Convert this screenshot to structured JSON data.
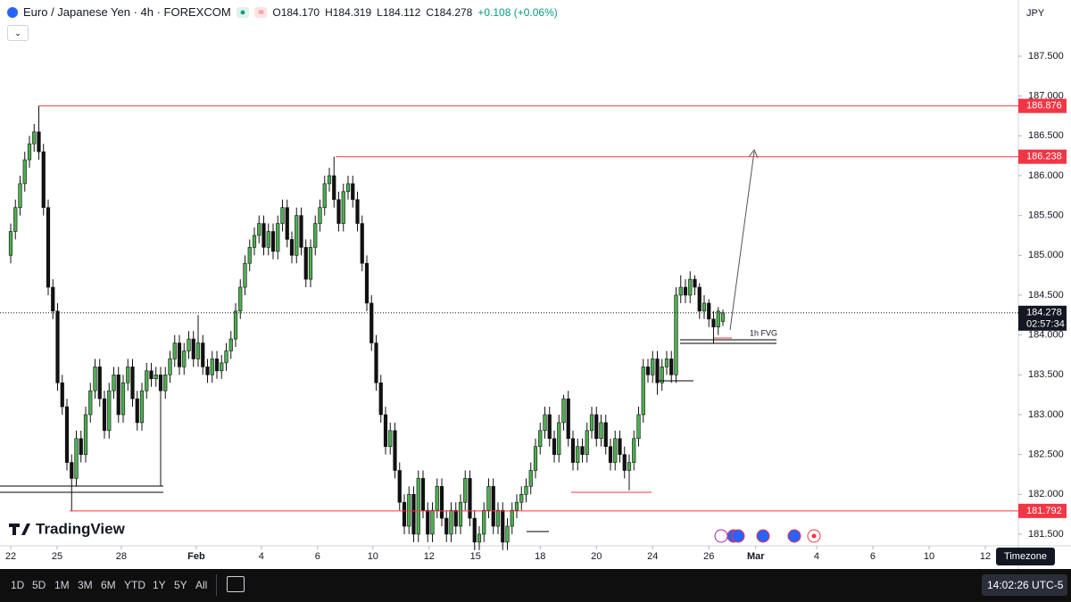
{
  "chart_data": {
    "type": "candlestick",
    "title": "Euro / Japanese Yen · 4h · FOREXCOM",
    "ohlc_labels": [
      "O184.170",
      "H184.319",
      "L184.112",
      "C184.278"
    ],
    "change": "+0.108 (+0.06%)",
    "currency": "JPY",
    "up_color": "#4caf50",
    "down_color": "#111111",
    "ylim": [
      181.354,
      188.205
    ],
    "xlim": [
      -2.286,
      214.86
    ],
    "yticks": [
      {
        "value": 181.5,
        "label": "181.500"
      },
      {
        "value": 182,
        "label": "182.000"
      },
      {
        "value": 182.5,
        "label": "182.500"
      },
      {
        "value": 183,
        "label": "183.000"
      },
      {
        "value": 183.5,
        "label": "183.500"
      },
      {
        "value": 184,
        "label": "184.000"
      },
      {
        "value": 184.5,
        "label": "184.500"
      },
      {
        "value": 185,
        "label": "185.000"
      },
      {
        "value": 185.5,
        "label": "185.500"
      },
      {
        "value": 186,
        "label": "186.000"
      },
      {
        "value": 186.5,
        "label": "186.500"
      },
      {
        "value": 187,
        "label": "187.000"
      },
      {
        "value": 187.5,
        "label": "187.500"
      }
    ],
    "xticks": [
      {
        "value": 0,
        "label": "22"
      },
      {
        "value": 9.9,
        "label": "25"
      },
      {
        "value": 23.6,
        "label": "28"
      },
      {
        "value": 39.6,
        "label": "Feb"
      },
      {
        "value": 53.5,
        "label": "4"
      },
      {
        "value": 65.5,
        "label": "6"
      },
      {
        "value": 77.3,
        "label": "10"
      },
      {
        "value": 89.3,
        "label": "12"
      },
      {
        "value": 99.2,
        "label": "15"
      },
      {
        "value": 113,
        "label": "18"
      },
      {
        "value": 125,
        "label": "20"
      },
      {
        "value": 137,
        "label": "24"
      },
      {
        "value": 149,
        "label": "26"
      },
      {
        "value": 159,
        "label": "Mar"
      },
      {
        "value": 172,
        "label": "4"
      },
      {
        "value": 184,
        "label": "6"
      },
      {
        "value": 196,
        "label": "10"
      },
      {
        "value": 208,
        "label": "12"
      }
    ],
    "levels": [
      186.876,
      186.238,
      181.792
    ],
    "level_color": "#f23645",
    "countdown": "02:57:34",
    "annotation": "1h FVG",
    "candles": [
      [
        185.0,
        185.4,
        184.9,
        185.3
      ],
      [
        185.3,
        185.7,
        185.2,
        185.6
      ],
      [
        185.6,
        186.0,
        185.5,
        185.9
      ],
      [
        185.9,
        186.3,
        185.8,
        186.2
      ],
      [
        186.2,
        186.5,
        186.1,
        186.4
      ],
      [
        186.4,
        186.65,
        186.3,
        186.55
      ],
      [
        186.55,
        186.876,
        186.2,
        186.3
      ],
      [
        186.3,
        186.4,
        185.5,
        185.6
      ],
      [
        185.6,
        185.7,
        184.5,
        184.6
      ],
      [
        184.6,
        184.7,
        184.2,
        184.3
      ],
      [
        184.3,
        184.4,
        183.3,
        183.4
      ],
      [
        183.4,
        183.5,
        183.0,
        183.1
      ],
      [
        183.1,
        183.2,
        182.3,
        182.4
      ],
      [
        182.4,
        182.5,
        181.79,
        182.2
      ],
      [
        182.2,
        182.8,
        182.1,
        182.7
      ],
      [
        182.7,
        182.8,
        182.4,
        182.5
      ],
      [
        182.5,
        183.1,
        182.4,
        183.0
      ],
      [
        183.0,
        183.4,
        182.9,
        183.3
      ],
      [
        183.3,
        183.7,
        183.2,
        183.6
      ],
      [
        183.6,
        183.7,
        183.1,
        183.2
      ],
      [
        183.2,
        183.3,
        182.7,
        182.8
      ],
      [
        182.8,
        183.4,
        182.7,
        183.3
      ],
      [
        183.3,
        183.6,
        183.2,
        183.5
      ],
      [
        183.5,
        183.6,
        182.9,
        183.0
      ],
      [
        183.0,
        183.5,
        182.9,
        183.4
      ],
      [
        183.4,
        183.7,
        183.3,
        183.6
      ],
      [
        183.6,
        183.7,
        183.1,
        183.2
      ],
      [
        183.2,
        183.3,
        182.8,
        182.9
      ],
      [
        182.9,
        183.4,
        182.8,
        183.3
      ],
      [
        183.3,
        183.65,
        183.2,
        183.55
      ],
      [
        183.55,
        183.65,
        183.35,
        183.45
      ],
      [
        183.45,
        183.6,
        183.35,
        183.5
      ],
      [
        183.5,
        183.6,
        182.1,
        183.3
      ],
      [
        183.3,
        183.6,
        183.2,
        183.5
      ],
      [
        183.5,
        183.8,
        183.4,
        183.7
      ],
      [
        183.7,
        184.0,
        183.6,
        183.9
      ],
      [
        183.9,
        184.0,
        183.5,
        183.6
      ],
      [
        183.6,
        183.9,
        183.5,
        183.8
      ],
      [
        183.8,
        184.05,
        183.7,
        183.95
      ],
      [
        183.95,
        184.05,
        183.6,
        183.7
      ],
      [
        183.7,
        184.25,
        183.6,
        183.9
      ],
      [
        183.9,
        184.0,
        183.5,
        183.6
      ],
      [
        183.6,
        183.7,
        183.4,
        183.5
      ],
      [
        183.5,
        183.8,
        183.4,
        183.7
      ],
      [
        183.7,
        183.8,
        183.45,
        183.55
      ],
      [
        183.55,
        183.75,
        183.45,
        183.65
      ],
      [
        183.65,
        183.9,
        183.55,
        183.8
      ],
      [
        183.8,
        184.05,
        183.7,
        183.95
      ],
      [
        183.95,
        184.4,
        183.85,
        184.3
      ],
      [
        184.3,
        184.7,
        184.2,
        184.6
      ],
      [
        184.6,
        185.0,
        184.5,
        184.9
      ],
      [
        184.9,
        185.2,
        184.8,
        185.1
      ],
      [
        185.1,
        185.35,
        185.0,
        185.25
      ],
      [
        185.25,
        185.5,
        185.15,
        185.4
      ],
      [
        185.4,
        185.5,
        185.0,
        185.1
      ],
      [
        185.1,
        185.4,
        185.0,
        185.3
      ],
      [
        185.3,
        185.4,
        184.95,
        185.05
      ],
      [
        185.05,
        185.5,
        184.95,
        185.4
      ],
      [
        185.4,
        185.7,
        185.3,
        185.6
      ],
      [
        185.6,
        185.7,
        185.1,
        185.2
      ],
      [
        185.2,
        185.3,
        184.9,
        185.0
      ],
      [
        185.0,
        185.6,
        184.9,
        185.5
      ],
      [
        185.5,
        185.6,
        185.0,
        185.1
      ],
      [
        185.1,
        185.2,
        184.6,
        184.7
      ],
      [
        184.7,
        185.2,
        184.6,
        185.1
      ],
      [
        185.1,
        185.5,
        185.0,
        185.4
      ],
      [
        185.4,
        185.7,
        185.3,
        185.6
      ],
      [
        185.6,
        186.0,
        185.5,
        185.9
      ],
      [
        185.9,
        186.1,
        185.8,
        186.0
      ],
      [
        186.0,
        186.238,
        185.6,
        185.7
      ],
      [
        185.7,
        185.8,
        185.3,
        185.4
      ],
      [
        185.4,
        185.9,
        185.3,
        185.8
      ],
      [
        185.8,
        186.0,
        185.7,
        185.9
      ],
      [
        185.9,
        186.0,
        185.6,
        185.7
      ],
      [
        185.7,
        185.8,
        185.3,
        185.4
      ],
      [
        185.4,
        185.5,
        184.8,
        184.9
      ],
      [
        184.9,
        185.0,
        184.3,
        184.4
      ],
      [
        184.4,
        184.5,
        183.8,
        183.9
      ],
      [
        183.9,
        184.0,
        183.3,
        183.4
      ],
      [
        183.4,
        183.5,
        182.9,
        183.0
      ],
      [
        183.0,
        183.1,
        182.5,
        182.6
      ],
      [
        182.6,
        182.9,
        182.5,
        182.8
      ],
      [
        182.8,
        182.9,
        182.2,
        182.3
      ],
      [
        182.3,
        182.4,
        181.8,
        181.9
      ],
      [
        181.9,
        182.0,
        181.5,
        181.6
      ],
      [
        181.6,
        182.1,
        181.5,
        182.0
      ],
      [
        182.0,
        182.1,
        181.4,
        181.5
      ],
      [
        181.5,
        182.3,
        181.4,
        182.2
      ],
      [
        182.2,
        182.3,
        181.7,
        181.8
      ],
      [
        181.8,
        181.9,
        181.4,
        181.5
      ],
      [
        181.5,
        181.9,
        181.4,
        181.8
      ],
      [
        181.8,
        182.2,
        181.7,
        182.1
      ],
      [
        182.1,
        182.2,
        181.6,
        181.7
      ],
      [
        181.7,
        181.8,
        181.4,
        181.5
      ],
      [
        181.5,
        181.9,
        181.4,
        181.8
      ],
      [
        181.8,
        181.9,
        181.5,
        181.6
      ],
      [
        181.6,
        182.0,
        181.5,
        181.9
      ],
      [
        181.9,
        182.3,
        181.8,
        182.2
      ],
      [
        182.2,
        182.3,
        181.6,
        181.7
      ],
      [
        181.7,
        181.8,
        181.3,
        181.4
      ],
      [
        181.4,
        181.6,
        181.3,
        181.5
      ],
      [
        181.5,
        181.9,
        181.4,
        181.8
      ],
      [
        181.8,
        182.2,
        181.7,
        182.1
      ],
      [
        182.1,
        182.2,
        181.5,
        181.6
      ],
      [
        181.6,
        181.9,
        181.5,
        181.8
      ],
      [
        181.8,
        181.9,
        181.3,
        181.4
      ],
      [
        181.4,
        181.7,
        181.3,
        181.6
      ],
      [
        181.6,
        181.9,
        181.5,
        181.8
      ],
      [
        181.8,
        182.0,
        181.7,
        181.9
      ],
      [
        181.9,
        182.1,
        181.8,
        182.0
      ],
      [
        182.0,
        182.2,
        181.9,
        182.1
      ],
      [
        182.1,
        182.4,
        182.0,
        182.3
      ],
      [
        182.3,
        182.7,
        182.2,
        182.6
      ],
      [
        182.6,
        182.9,
        182.5,
        182.8
      ],
      [
        182.8,
        183.1,
        182.7,
        183.0
      ],
      [
        183.0,
        183.1,
        182.6,
        182.7
      ],
      [
        182.7,
        182.8,
        182.4,
        182.5
      ],
      [
        182.5,
        183.0,
        182.4,
        182.9
      ],
      [
        182.9,
        183.25,
        182.8,
        183.2
      ],
      [
        183.2,
        183.3,
        182.6,
        182.7
      ],
      [
        182.7,
        182.8,
        182.3,
        182.4
      ],
      [
        182.4,
        182.7,
        182.3,
        182.6
      ],
      [
        182.6,
        182.7,
        182.4,
        182.5
      ],
      [
        182.5,
        182.9,
        182.4,
        182.8
      ],
      [
        182.8,
        183.1,
        182.7,
        183.0
      ],
      [
        183.0,
        183.1,
        182.6,
        182.7
      ],
      [
        182.7,
        183.0,
        182.6,
        182.9
      ],
      [
        182.9,
        183.0,
        182.5,
        182.6
      ],
      [
        182.6,
        182.7,
        182.3,
        182.4
      ],
      [
        182.4,
        182.8,
        182.3,
        182.7
      ],
      [
        182.7,
        182.8,
        182.4,
        182.5
      ],
      [
        182.5,
        182.6,
        182.2,
        182.3
      ],
      [
        182.3,
        182.5,
        182.05,
        182.4
      ],
      [
        182.4,
        182.8,
        182.3,
        182.7
      ],
      [
        182.7,
        183.1,
        182.6,
        183.0
      ],
      [
        183.0,
        183.7,
        182.9,
        183.6
      ],
      [
        183.6,
        183.7,
        183.4,
        183.5
      ],
      [
        183.5,
        183.8,
        183.4,
        183.7
      ],
      [
        183.7,
        183.8,
        183.25,
        183.4
      ],
      [
        183.4,
        183.7,
        183.3,
        183.6
      ],
      [
        183.6,
        183.8,
        183.5,
        183.7
      ],
      [
        183.7,
        183.8,
        183.4,
        183.5
      ],
      [
        183.5,
        184.6,
        183.4,
        184.5
      ],
      [
        184.5,
        184.75,
        184.4,
        184.6
      ],
      [
        184.6,
        184.7,
        184.4,
        184.5
      ],
      [
        184.5,
        184.8,
        184.4,
        184.7
      ],
      [
        184.7,
        184.75,
        184.5,
        184.6
      ],
      [
        184.6,
        184.65,
        184.2,
        184.3
      ],
      [
        184.3,
        184.5,
        184.2,
        184.4
      ],
      [
        184.4,
        184.45,
        184.1,
        184.2
      ],
      [
        184.2,
        184.3,
        183.9,
        184.1
      ],
      [
        184.1,
        184.35,
        184.0,
        184.3
      ],
      [
        184.17,
        184.319,
        184.112,
        184.278
      ]
    ]
  },
  "toolbar": {
    "ranges": [
      "1D",
      "5D",
      "1M",
      "3M",
      "6M",
      "YTD",
      "1Y",
      "5Y",
      "All"
    ],
    "clock": "14:02:26 UTC-5",
    "timezone": "Timezone"
  },
  "logo": "TradingView"
}
